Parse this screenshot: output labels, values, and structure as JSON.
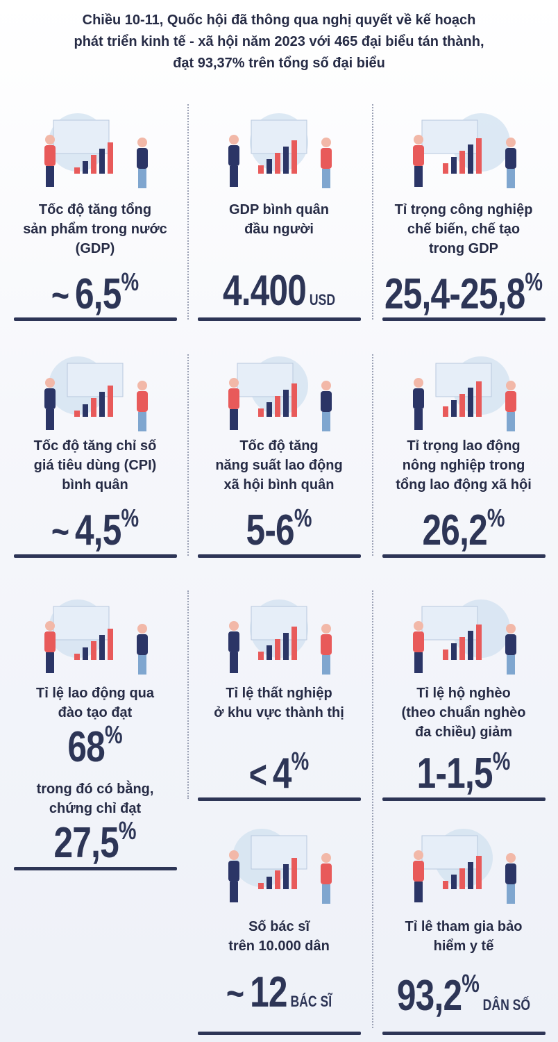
{
  "header": {
    "title": [
      "Chiều 10-11, Quốc hội đã thông qua nghị quyết về kế hoạch",
      "phát triển kinh tế - xã hội năm 2023 với 465 đại biểu tán thành,",
      "đạt 93,37% trên tổng số đại biểu"
    ]
  },
  "items": [
    {
      "label": [
        "Tốc độ tăng tổng",
        "sản phẩm trong nước",
        "(GDP)"
      ],
      "value": {
        "prefix": "~",
        "number": "6,5",
        "unit": "%"
      }
    },
    {
      "label": [
        "GDP bình quân",
        "đầu người"
      ],
      "value": {
        "number": "4.400",
        "suffix": "USD"
      }
    },
    {
      "label": [
        "Tỉ trọng công nghiệp",
        "chế biến, chế tạo",
        "trong GDP"
      ],
      "value": {
        "number": "25,4-25,8",
        "unit": "%"
      }
    },
    {
      "label": [
        "Tốc độ tăng chỉ số",
        "giá tiêu dùng (CPI)",
        "bình quân"
      ],
      "value": {
        "prefix": "~",
        "number": "4,5",
        "unit": "%"
      }
    },
    {
      "label": [
        "Tốc độ tăng",
        "năng suất lao động",
        "xã hội bình quân"
      ],
      "value": {
        "number": "5-6",
        "unit": "%"
      }
    },
    {
      "label": [
        "Tỉ trọng lao động",
        "nông nghiệp trong",
        "tổng lao động xã hội"
      ],
      "value": {
        "number": "26,2",
        "unit": "%"
      }
    },
    {
      "label": [
        "Tỉ lệ lao động qua",
        "đào tạo đạt"
      ],
      "value": {
        "number": "68",
        "unit": "%"
      },
      "sublabel": [
        "trong đó có bằng,",
        "chứng chỉ đạt"
      ],
      "subvalue": {
        "number": "27,5",
        "unit": "%"
      }
    },
    {
      "label": [
        "Tỉ lệ thất nghiệp",
        "ở khu vực thành thị"
      ],
      "value": {
        "prefix": "<",
        "number": "4",
        "unit": "%"
      }
    },
    {
      "label": [
        "Tỉ lệ hộ nghèo",
        "(theo chuẩn nghèo",
        "đa chiều) giảm"
      ],
      "value": {
        "number": "1-1,5",
        "unit": "%"
      }
    },
    {
      "label": [
        "Số bác sĩ",
        "trên 10.000 dân"
      ],
      "value": {
        "prefix": "~",
        "number": "12",
        "suffix": "BÁC SĨ"
      }
    },
    {
      "label": [
        "Tỉ lê tham gia bảo",
        "hiểm y tế"
      ],
      "value": {
        "number": "93,2",
        "unit": "%",
        "suffix": "DÂN SỐ"
      }
    }
  ]
}
